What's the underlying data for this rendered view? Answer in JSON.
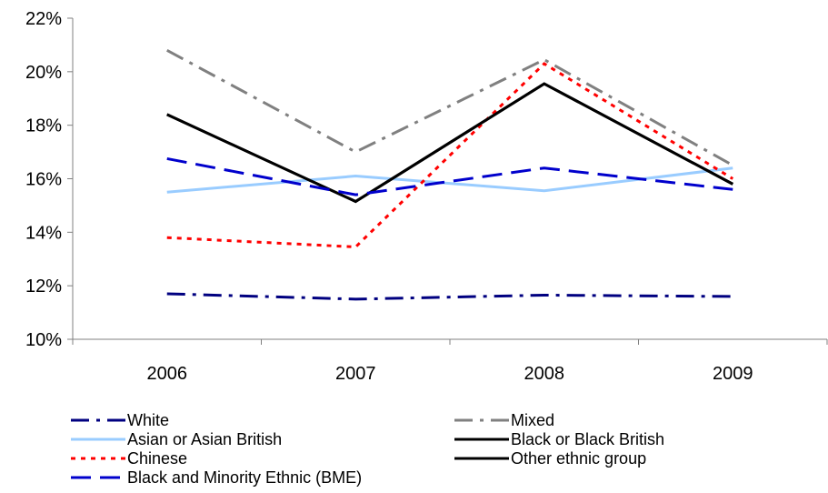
{
  "chart_data": {
    "type": "line",
    "title": "",
    "xlabel": "",
    "ylabel": "",
    "categories": [
      "2006",
      "2007",
      "2008",
      "2009"
    ],
    "ylim": [
      10,
      22
    ],
    "yticks": [
      "10%",
      "12%",
      "14%",
      "16%",
      "18%",
      "20%",
      "22%"
    ],
    "ytick_values": [
      10,
      12,
      14,
      16,
      18,
      20,
      22
    ],
    "grid": false,
    "legend": "bottom",
    "series": [
      {
        "name": "White",
        "values": [
          11.7,
          11.5,
          11.65,
          11.6
        ],
        "color": "#000080",
        "style": "dash-dot"
      },
      {
        "name": "Mixed",
        "values": [
          20.8,
          17.0,
          20.45,
          16.5
        ],
        "color": "#808080",
        "style": "dash-dot"
      },
      {
        "name": "Asian or Asian British",
        "values": [
          15.5,
          16.1,
          15.55,
          16.4
        ],
        "color": "#99ccff",
        "style": "solid"
      },
      {
        "name": "Black or Black British",
        "values": [
          18.4,
          15.15,
          19.55,
          15.8
        ],
        "color": "#000000",
        "style": "solid"
      },
      {
        "name": "Chinese",
        "values": [
          13.8,
          13.45,
          20.3,
          16.0
        ],
        "color": "#ff0000",
        "style": "dotted"
      },
      {
        "name": "Other ethnic group",
        "values": [
          18.4,
          15.15,
          19.55,
          15.8
        ],
        "color": "#000000",
        "style": "solid"
      },
      {
        "name": "Black and Minority Ethnic (BME)",
        "values": [
          16.75,
          15.4,
          16.4,
          15.6
        ],
        "color": "#0000cc",
        "style": "dashed"
      }
    ]
  }
}
